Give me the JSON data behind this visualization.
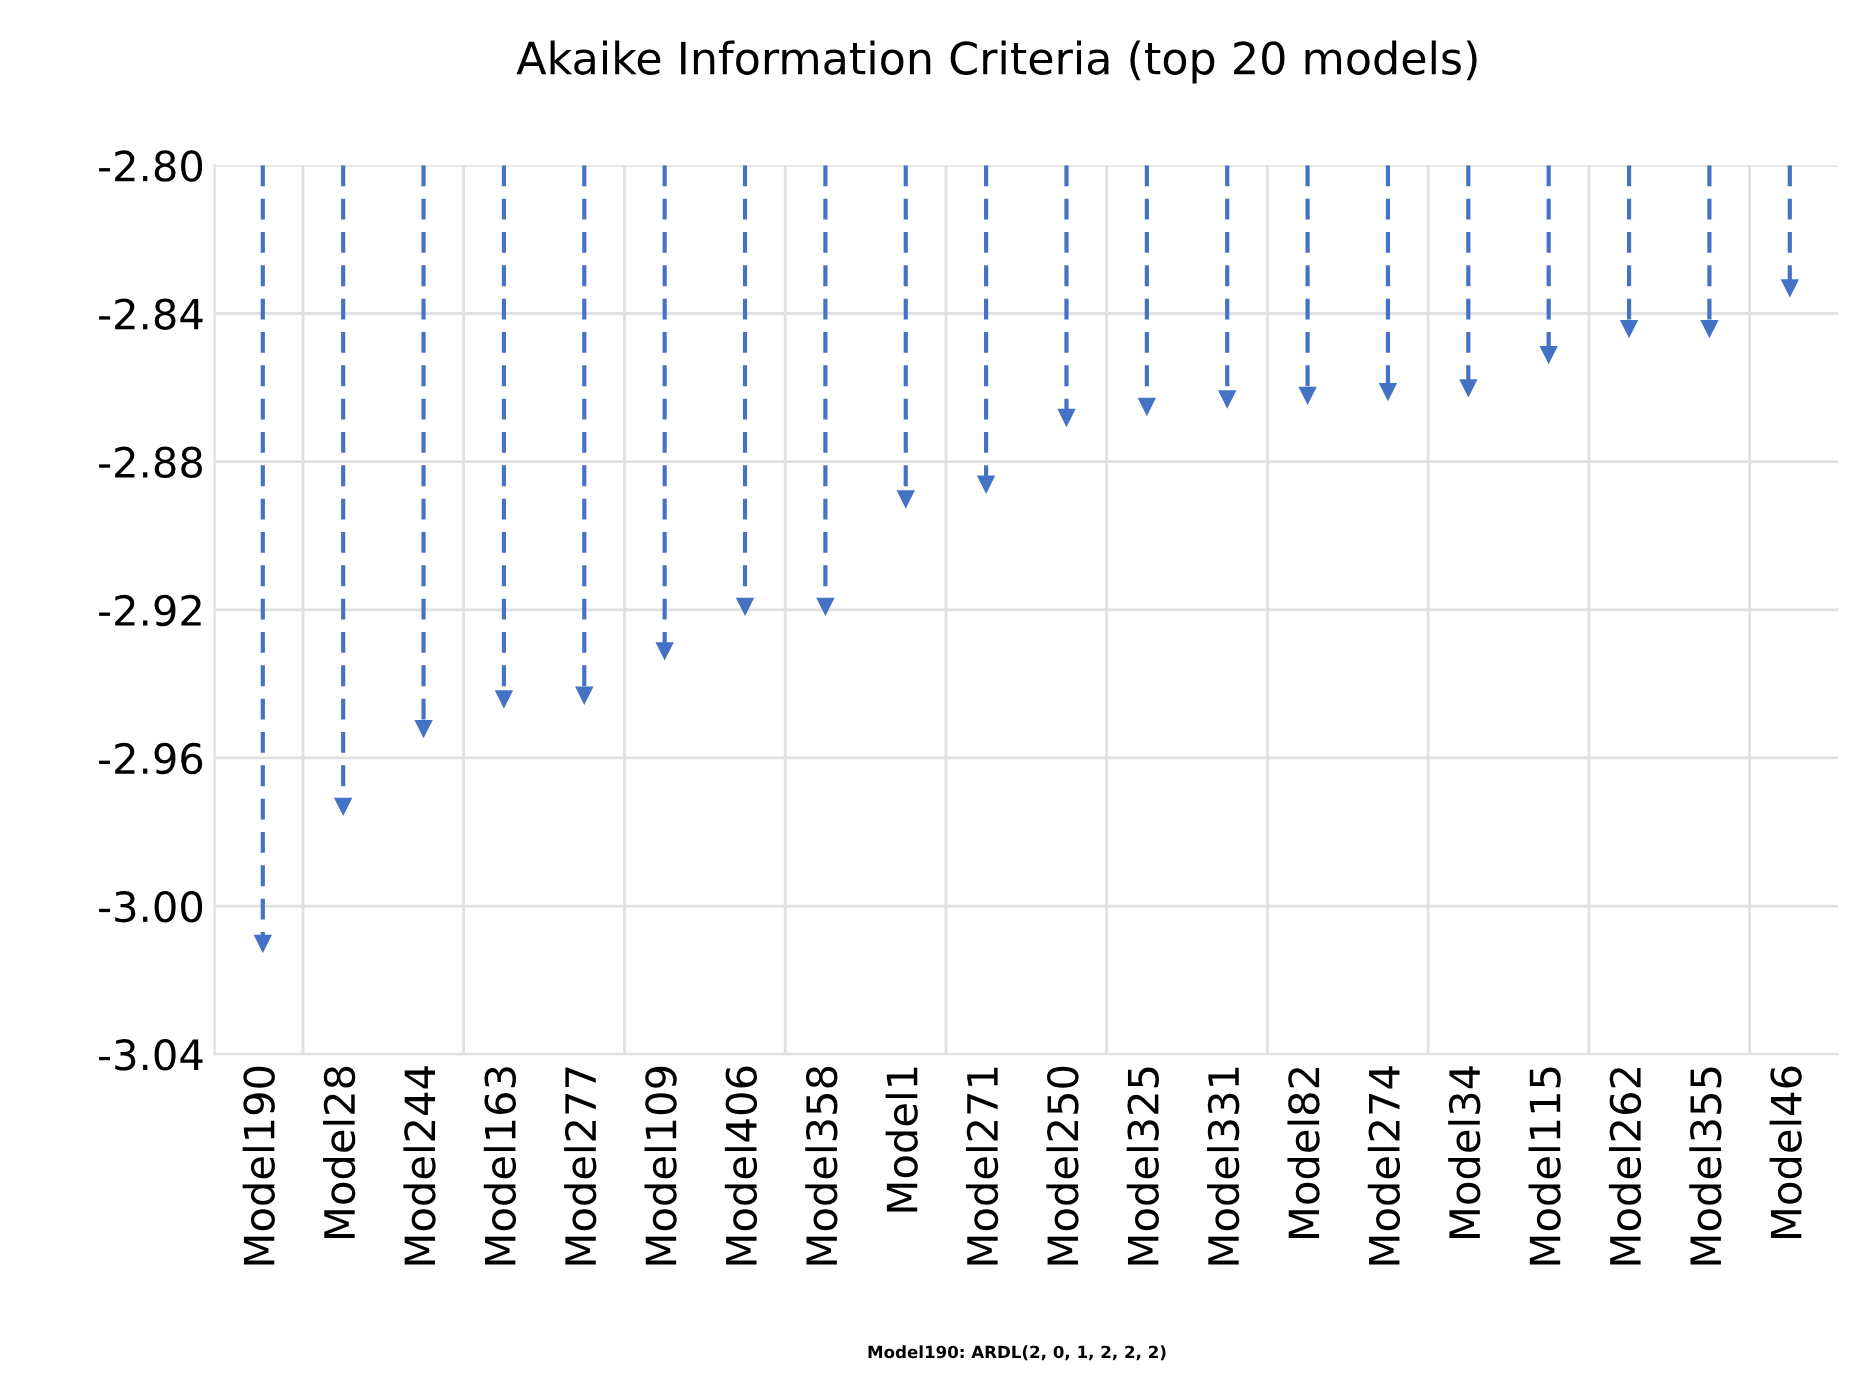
{
  "chart_data": {
    "type": "lollipop",
    "title": "Akaike Information Criteria (top 20 models)",
    "categories": [
      "Model190",
      "Model28",
      "Model244",
      "Model163",
      "Model277",
      "Model109",
      "Model406",
      "Model358",
      "Model1",
      "Model271",
      "Model250",
      "Model325",
      "Model331",
      "Model82",
      "Model274",
      "Model34",
      "Model115",
      "Model262",
      "Model355",
      "Model46"
    ],
    "values": [
      -3.01,
      -2.973,
      -2.952,
      -2.944,
      -2.943,
      -2.931,
      -2.919,
      -2.919,
      -2.89,
      -2.886,
      -2.868,
      -2.865,
      -2.863,
      -2.862,
      -2.861,
      -2.86,
      -2.851,
      -2.844,
      -2.844,
      -2.833
    ],
    "color": "#4472c4",
    "ylim": [
      -3.04,
      -2.8
    ],
    "yticks": [
      {
        "value": -3.04,
        "label": "-3.04"
      },
      {
        "value": -3.0,
        "label": "-3.00"
      },
      {
        "value": -2.96,
        "label": "-2.96"
      },
      {
        "value": -2.92,
        "label": "-2.92"
      },
      {
        "value": -2.88,
        "label": "-2.88"
      },
      {
        "value": -2.84,
        "label": "-2.84"
      },
      {
        "value": -2.8,
        "label": "-2.80"
      }
    ],
    "grid": true,
    "marker": "triangle",
    "line_style": "dashed",
    "annotations": [
      "Model190: ARDL(2, 0, 1, 2, 2, 2)"
    ]
  }
}
